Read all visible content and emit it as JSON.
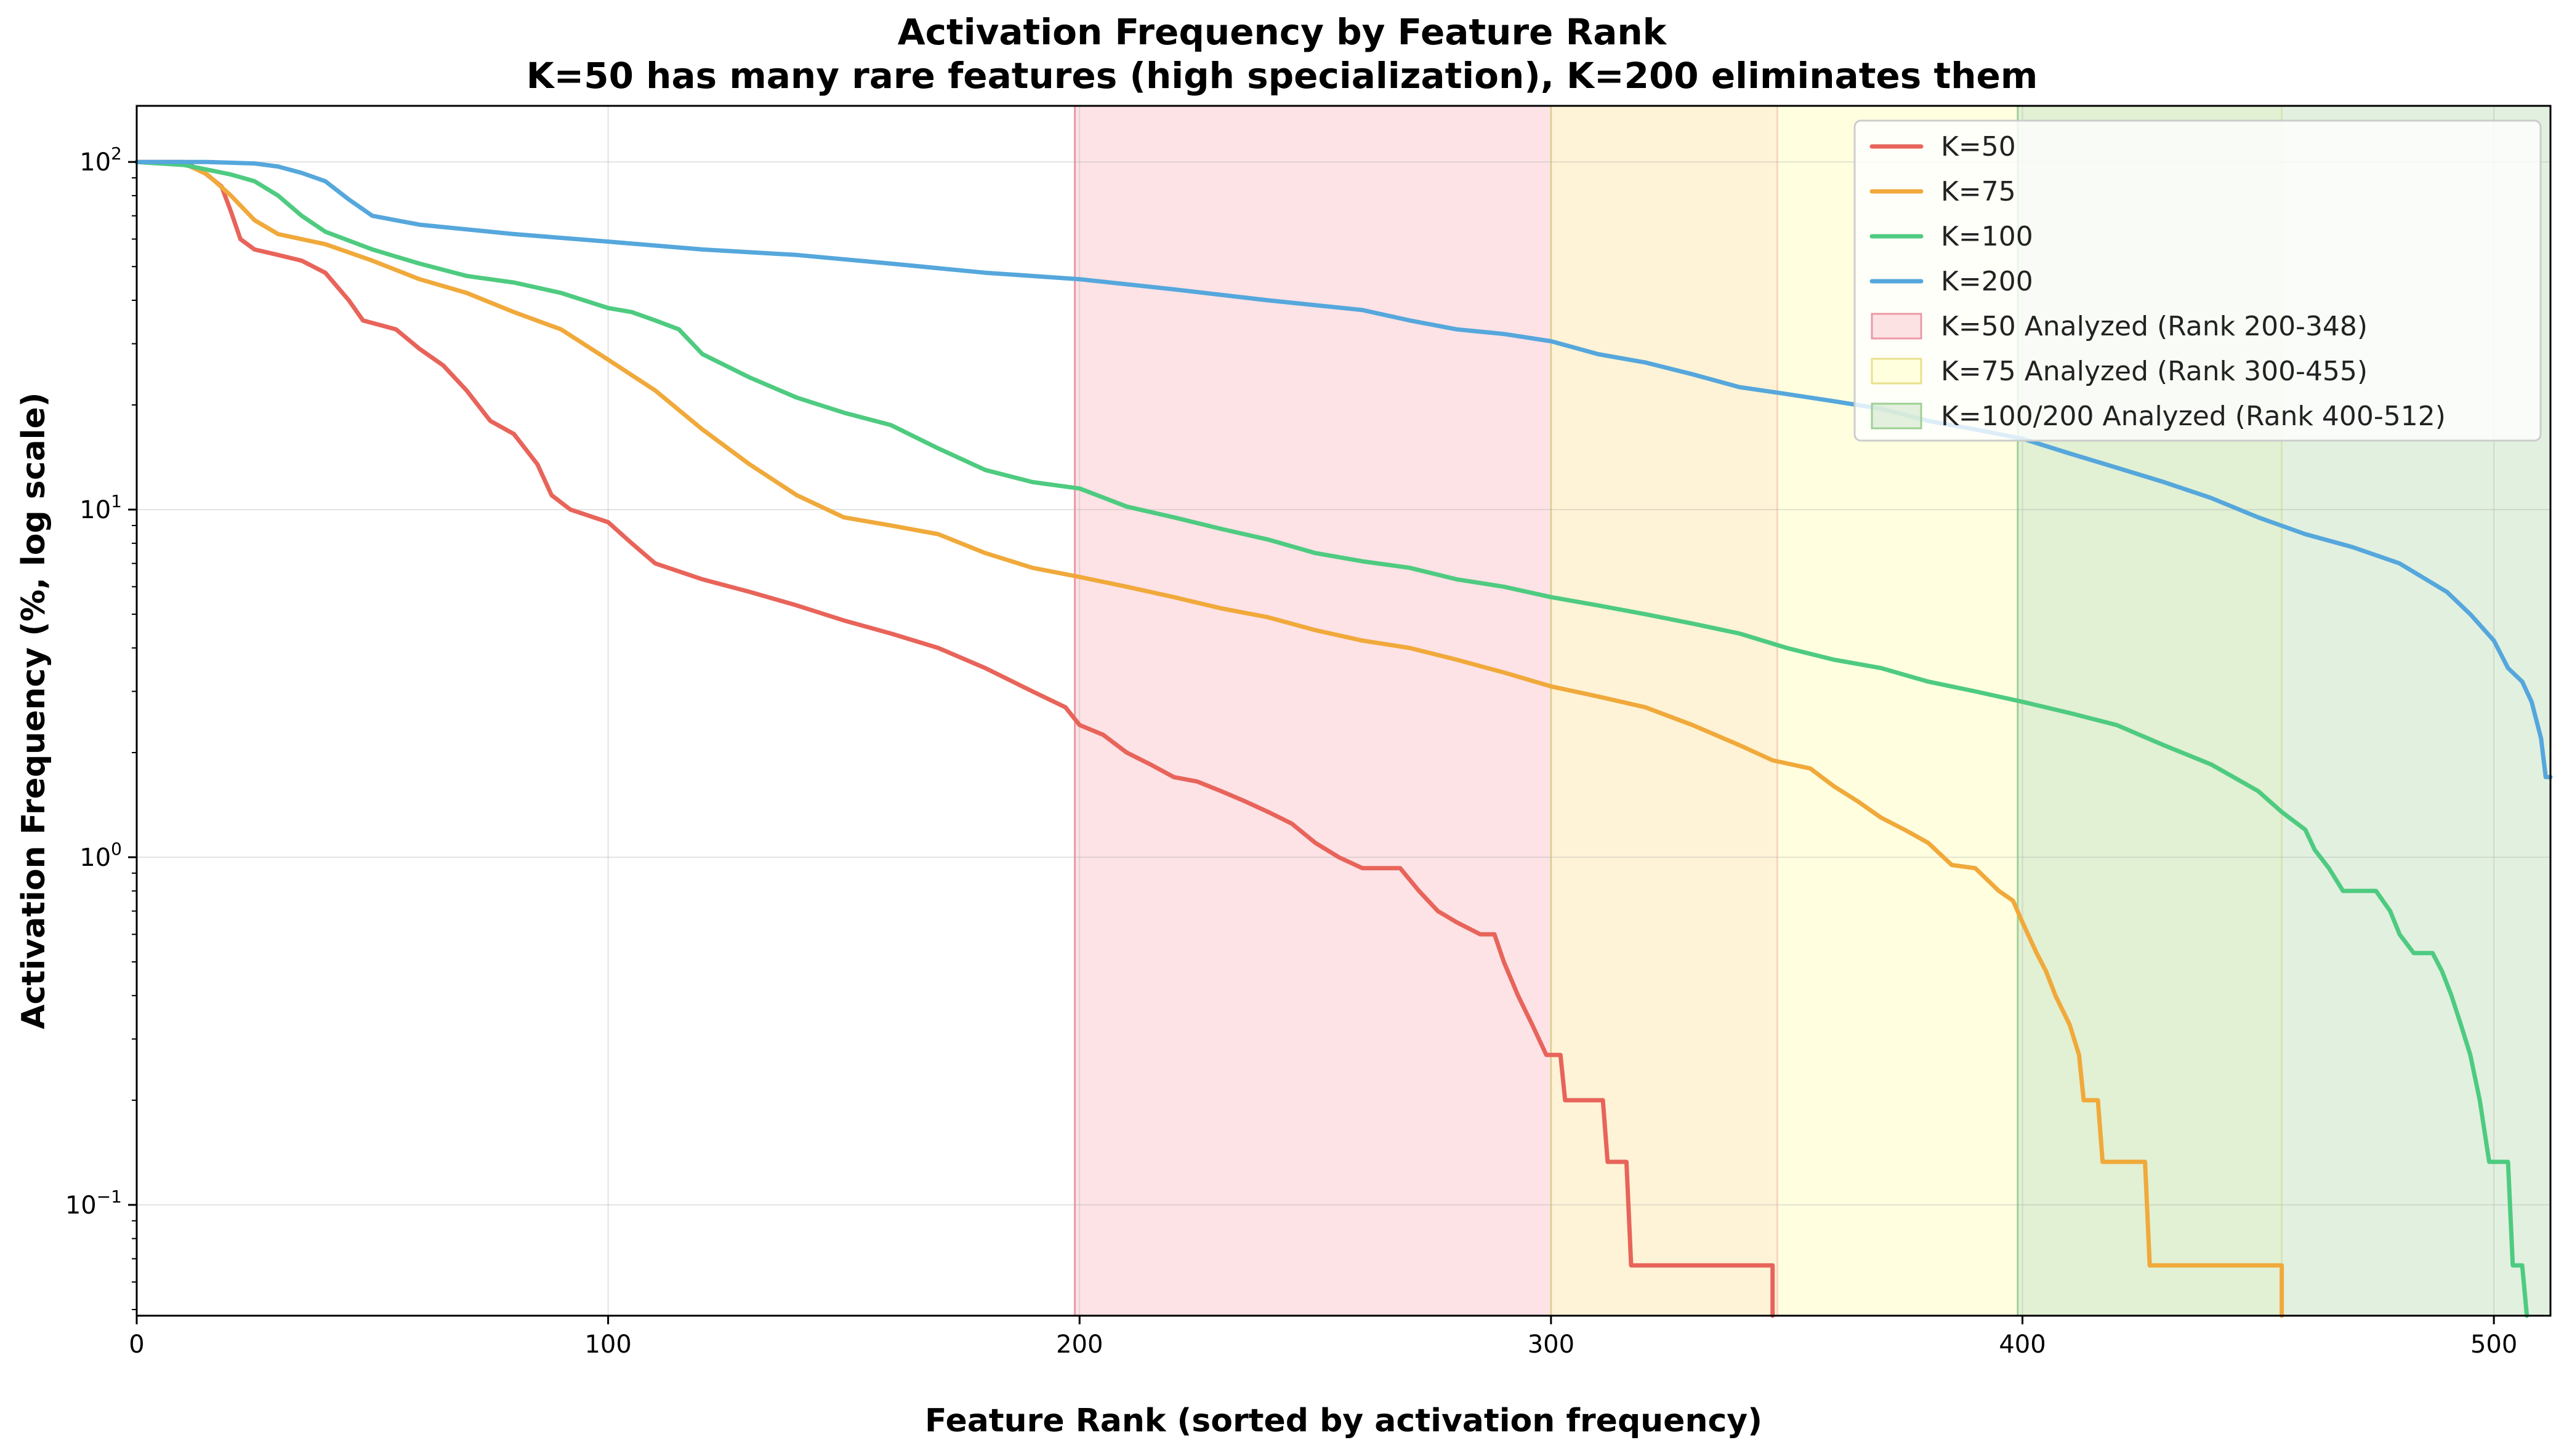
{
  "chart_data": {
    "type": "line",
    "title": "Activation Frequency by Feature Rank",
    "subtitle": "K=50 has many rare features (high specialization), K=200 eliminates them",
    "xlabel": "Feature Rank (sorted by activation frequency)",
    "ylabel": "Activation Frequency (%, log scale)",
    "xscale": "linear",
    "yscale": "log",
    "xlim": [
      0,
      512
    ],
    "ylim": [
      0.048,
      145
    ],
    "xticks": [
      0,
      100,
      200,
      300,
      400,
      500
    ],
    "yticks": [
      {
        "value": 0.1,
        "base": "10",
        "exp": "−1"
      },
      {
        "value": 1,
        "base": "10",
        "exp": "0"
      },
      {
        "value": 10,
        "base": "10",
        "exp": "1"
      },
      {
        "value": 100,
        "base": "10",
        "exp": "2"
      }
    ],
    "grid": true,
    "legend_position": "top-right",
    "series": [
      {
        "name": "K=50",
        "color": "#e8645a",
        "points": [
          [
            0,
            100
          ],
          [
            10,
            100
          ],
          [
            14,
            94
          ],
          [
            18,
            85
          ],
          [
            20,
            72
          ],
          [
            22,
            60
          ],
          [
            25,
            56
          ],
          [
            30,
            54
          ],
          [
            35,
            52
          ],
          [
            40,
            48
          ],
          [
            45,
            40
          ],
          [
            48,
            35
          ],
          [
            55,
            33
          ],
          [
            60,
            29
          ],
          [
            65,
            26
          ],
          [
            70,
            22
          ],
          [
            75,
            18
          ],
          [
            80,
            16.5
          ],
          [
            85,
            13.5
          ],
          [
            88,
            11
          ],
          [
            92,
            10
          ],
          [
            100,
            9.2
          ],
          [
            105,
            8
          ],
          [
            110,
            7
          ],
          [
            120,
            6.3
          ],
          [
            130,
            5.8
          ],
          [
            140,
            5.3
          ],
          [
            150,
            4.8
          ],
          [
            160,
            4.4
          ],
          [
            170,
            4.0
          ],
          [
            180,
            3.5
          ],
          [
            190,
            3.0
          ],
          [
            197,
            2.7
          ],
          [
            200,
            2.4
          ],
          [
            205,
            2.25
          ],
          [
            210,
            2.0
          ],
          [
            215,
            1.85
          ],
          [
            220,
            1.7
          ],
          [
            225,
            1.65
          ],
          [
            230,
            1.55
          ],
          [
            235,
            1.45
          ],
          [
            240,
            1.35
          ],
          [
            245,
            1.25
          ],
          [
            250,
            1.1
          ],
          [
            255,
            1.0
          ],
          [
            260,
            0.93
          ],
          [
            268,
            0.93
          ],
          [
            272,
            0.8
          ],
          [
            276,
            0.7
          ],
          [
            280,
            0.65
          ],
          [
            285,
            0.6
          ],
          [
            288,
            0.6
          ],
          [
            290,
            0.5
          ],
          [
            293,
            0.4
          ],
          [
            296,
            0.33
          ],
          [
            299,
            0.27
          ],
          [
            302,
            0.27
          ],
          [
            303,
            0.2
          ],
          [
            311,
            0.2
          ],
          [
            312,
            0.133
          ],
          [
            316,
            0.133
          ],
          [
            317,
            0.067
          ],
          [
            347,
            0.067
          ],
          [
            347,
            0.048
          ]
        ]
      },
      {
        "name": "K=75",
        "color": "#f0a93a",
        "points": [
          [
            0,
            100
          ],
          [
            10,
            99
          ],
          [
            15,
            92
          ],
          [
            20,
            80
          ],
          [
            25,
            68
          ],
          [
            30,
            62
          ],
          [
            40,
            58
          ],
          [
            50,
            52
          ],
          [
            60,
            46
          ],
          [
            70,
            42
          ],
          [
            80,
            37
          ],
          [
            90,
            33
          ],
          [
            100,
            27
          ],
          [
            110,
            22
          ],
          [
            120,
            17
          ],
          [
            130,
            13.5
          ],
          [
            140,
            11
          ],
          [
            150,
            9.5
          ],
          [
            160,
            9.0
          ],
          [
            170,
            8.5
          ],
          [
            180,
            7.5
          ],
          [
            190,
            6.8
          ],
          [
            200,
            6.4
          ],
          [
            210,
            6.0
          ],
          [
            220,
            5.6
          ],
          [
            230,
            5.2
          ],
          [
            240,
            4.9
          ],
          [
            250,
            4.5
          ],
          [
            260,
            4.2
          ],
          [
            270,
            4.0
          ],
          [
            280,
            3.7
          ],
          [
            290,
            3.4
          ],
          [
            300,
            3.1
          ],
          [
            310,
            2.9
          ],
          [
            320,
            2.7
          ],
          [
            330,
            2.4
          ],
          [
            340,
            2.1
          ],
          [
            347,
            1.9
          ],
          [
            355,
            1.8
          ],
          [
            360,
            1.6
          ],
          [
            365,
            1.45
          ],
          [
            370,
            1.3
          ],
          [
            375,
            1.2
          ],
          [
            380,
            1.1
          ],
          [
            385,
            0.95
          ],
          [
            390,
            0.93
          ],
          [
            395,
            0.8
          ],
          [
            398,
            0.75
          ],
          [
            400,
            0.65
          ],
          [
            403,
            0.53
          ],
          [
            405,
            0.47
          ],
          [
            407,
            0.4
          ],
          [
            410,
            0.33
          ],
          [
            412,
            0.27
          ],
          [
            413,
            0.2
          ],
          [
            416,
            0.2
          ],
          [
            417,
            0.133
          ],
          [
            426,
            0.133
          ],
          [
            427,
            0.067
          ],
          [
            455,
            0.067
          ],
          [
            455,
            0.048
          ]
        ]
      },
      {
        "name": "K=100",
        "color": "#4ecb80",
        "points": [
          [
            0,
            100
          ],
          [
            10,
            98
          ],
          [
            15,
            95
          ],
          [
            20,
            92
          ],
          [
            25,
            88
          ],
          [
            30,
            80
          ],
          [
            35,
            70
          ],
          [
            40,
            63
          ],
          [
            50,
            56
          ],
          [
            60,
            51
          ],
          [
            70,
            47
          ],
          [
            80,
            45
          ],
          [
            90,
            42
          ],
          [
            100,
            38
          ],
          [
            105,
            37
          ],
          [
            110,
            35
          ],
          [
            115,
            33
          ],
          [
            120,
            28
          ],
          [
            130,
            24
          ],
          [
            140,
            21
          ],
          [
            150,
            19
          ],
          [
            160,
            17.5
          ],
          [
            170,
            15
          ],
          [
            180,
            13
          ],
          [
            190,
            12
          ],
          [
            200,
            11.5
          ],
          [
            210,
            10.2
          ],
          [
            220,
            9.5
          ],
          [
            230,
            8.8
          ],
          [
            240,
            8.2
          ],
          [
            250,
            7.5
          ],
          [
            260,
            7.1
          ],
          [
            270,
            6.8
          ],
          [
            280,
            6.3
          ],
          [
            290,
            6.0
          ],
          [
            300,
            5.6
          ],
          [
            310,
            5.3
          ],
          [
            320,
            5.0
          ],
          [
            330,
            4.7
          ],
          [
            340,
            4.4
          ],
          [
            350,
            4.0
          ],
          [
            360,
            3.7
          ],
          [
            370,
            3.5
          ],
          [
            380,
            3.2
          ],
          [
            390,
            3.0
          ],
          [
            400,
            2.8
          ],
          [
            410,
            2.6
          ],
          [
            420,
            2.4
          ],
          [
            430,
            2.1
          ],
          [
            440,
            1.85
          ],
          [
            450,
            1.55
          ],
          [
            455,
            1.35
          ],
          [
            460,
            1.2
          ],
          [
            462,
            1.05
          ],
          [
            465,
            0.93
          ],
          [
            468,
            0.8
          ],
          [
            475,
            0.8
          ],
          [
            478,
            0.7
          ],
          [
            480,
            0.6
          ],
          [
            483,
            0.53
          ],
          [
            487,
            0.53
          ],
          [
            489,
            0.47
          ],
          [
            491,
            0.4
          ],
          [
            493,
            0.33
          ],
          [
            495,
            0.27
          ],
          [
            497,
            0.2
          ],
          [
            499,
            0.133
          ],
          [
            503,
            0.133
          ],
          [
            504,
            0.067
          ],
          [
            506,
            0.067
          ],
          [
            507,
            0.048
          ]
        ]
      },
      {
        "name": "K=200",
        "color": "#55a7dc",
        "points": [
          [
            0,
            100
          ],
          [
            15,
            100
          ],
          [
            25,
            99
          ],
          [
            30,
            97
          ],
          [
            35,
            93
          ],
          [
            40,
            88
          ],
          [
            45,
            78
          ],
          [
            50,
            70
          ],
          [
            60,
            66
          ],
          [
            80,
            62
          ],
          [
            100,
            59
          ],
          [
            120,
            56
          ],
          [
            140,
            54
          ],
          [
            160,
            51
          ],
          [
            180,
            48
          ],
          [
            200,
            46
          ],
          [
            220,
            43
          ],
          [
            240,
            40
          ],
          [
            260,
            37.5
          ],
          [
            270,
            35
          ],
          [
            280,
            33
          ],
          [
            290,
            32
          ],
          [
            300,
            30.5
          ],
          [
            310,
            28
          ],
          [
            320,
            26.5
          ],
          [
            330,
            24.5
          ],
          [
            340,
            22.5
          ],
          [
            350,
            21.5
          ],
          [
            360,
            20.5
          ],
          [
            370,
            19.5
          ],
          [
            380,
            18
          ],
          [
            390,
            17
          ],
          [
            400,
            16
          ],
          [
            410,
            14.5
          ],
          [
            420,
            13.2
          ],
          [
            430,
            12
          ],
          [
            440,
            10.8
          ],
          [
            450,
            9.5
          ],
          [
            460,
            8.5
          ],
          [
            470,
            7.8
          ],
          [
            480,
            7.0
          ],
          [
            490,
            5.8
          ],
          [
            495,
            5.0
          ],
          [
            500,
            4.2
          ],
          [
            503,
            3.5
          ],
          [
            506,
            3.2
          ],
          [
            508,
            2.8
          ],
          [
            510,
            2.2
          ],
          [
            511,
            1.7
          ],
          [
            512,
            1.7
          ]
        ]
      }
    ],
    "regions": [
      {
        "label": "K=50 Analyzed (Rank 200-348)",
        "x0": 199,
        "x1": 348,
        "color": "#fccfd5",
        "border": "#ea9aa5"
      },
      {
        "label": "K=75 Analyzed (Rank 300-455)",
        "x0": 300,
        "x1": 455,
        "color": "#ffffcc",
        "border": "#e9e08c"
      },
      {
        "label": "K=100/200 Analyzed (Rank 400-512)",
        "x0": 399,
        "x1": 512,
        "color": "#cfe6c9",
        "border": "#9fcf95"
      }
    ]
  }
}
